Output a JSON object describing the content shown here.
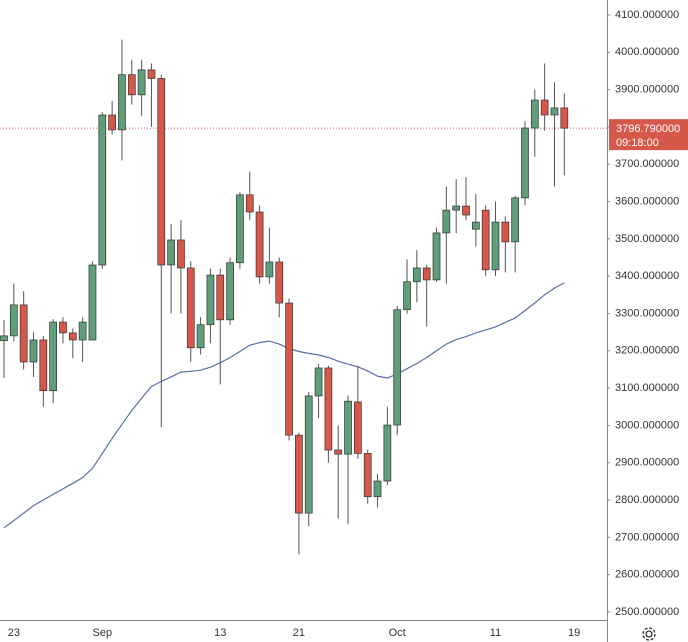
{
  "chart_data": {
    "type": "candlestick",
    "categories": [
      null,
      "23",
      null,
      null,
      null,
      null,
      null,
      null,
      null,
      null,
      "Sep",
      null,
      null,
      null,
      null,
      null,
      null,
      null,
      null,
      null,
      null,
      null,
      "13",
      null,
      null,
      null,
      null,
      null,
      null,
      null,
      "21",
      null,
      null,
      null,
      null,
      null,
      null,
      null,
      null,
      null,
      "Oct",
      null,
      null,
      null,
      null,
      null,
      null,
      null,
      null,
      null,
      "11",
      null,
      null,
      null,
      null,
      null,
      null,
      null,
      "19"
    ],
    "open": [
      3227,
      3240,
      3323,
      3170,
      3229,
      3093,
      3277,
      3248,
      3229,
      3229,
      3430,
      3832,
      3792,
      3940,
      3886,
      3953,
      3930,
      3430,
      3497,
      3422,
      3208,
      3270,
      3403,
      3283,
      3436,
      3618,
      3572,
      3398,
      3438,
      3328,
      2974,
      2765,
      3079,
      3154,
      2934,
      2923,
      3063,
      2925,
      2809,
      2851,
      3001,
      3310,
      3385,
      3422,
      3390,
      3516,
      3577,
      3588,
      3526,
      3577,
      3417,
      3545,
      3492,
      3610,
      3797,
      3872,
      3832,
      3851,
      null
    ],
    "high": [
      3283,
      3380,
      3360,
      3250,
      3240,
      3285,
      3290,
      3260,
      3290,
      3440,
      3840,
      3870,
      4034,
      3980,
      3980,
      3970,
      3940,
      3540,
      3550,
      3440,
      3290,
      3420,
      3420,
      3450,
      3625,
      3680,
      3590,
      3530,
      3450,
      3340,
      2980,
      3090,
      3165,
      3160,
      3000,
      3080,
      3160,
      2935,
      2870,
      3050,
      3320,
      3445,
      3470,
      3430,
      3530,
      3640,
      3660,
      3665,
      3620,
      3590,
      3600,
      3560,
      3615,
      3815,
      3900,
      3970,
      3920,
      3890,
      null
    ],
    "low": [
      3127,
      3225,
      3150,
      3130,
      3050,
      3060,
      3220,
      3180,
      3170,
      3229,
      3420,
      3780,
      3710,
      3860,
      3830,
      3800,
      2995,
      3300,
      3300,
      3170,
      3190,
      3220,
      3110,
      3270,
      3420,
      3550,
      3380,
      3380,
      3290,
      2960,
      2655,
      2730,
      3020,
      2900,
      2750,
      2735,
      2910,
      2790,
      2780,
      2840,
      2975,
      3300,
      3330,
      3265,
      3385,
      3380,
      3515,
      3550,
      3480,
      3400,
      3400,
      3410,
      3410,
      3590,
      3720,
      3790,
      3640,
      3670,
      null
    ],
    "close": [
      3240,
      3323,
      3170,
      3229,
      3093,
      3277,
      3248,
      3229,
      3277,
      3430,
      3832,
      3792,
      3940,
      3886,
      3953,
      3930,
      3430,
      3497,
      3422,
      3208,
      3270,
      3403,
      3283,
      3436,
      3618,
      3572,
      3398,
      3438,
      3328,
      2974,
      2765,
      3079,
      3154,
      2934,
      2923,
      3065,
      2925,
      2809,
      2851,
      3001,
      3310,
      3385,
      3422,
      3390,
      3516,
      3577,
      3588,
      3564,
      3545,
      3417,
      3545,
      3492,
      3610,
      3797,
      3872,
      3832,
      3851,
      3796.79,
      null
    ],
    "up_color": "#5f9e78",
    "down_color": "#d6584a",
    "ma": {
      "color": "#5a6fa8",
      "values": [
        2726,
        2745,
        2765,
        2785,
        2800,
        2815,
        2830,
        2845,
        2860,
        2885,
        2925,
        2965,
        3003,
        3040,
        3073,
        3104,
        3118,
        3130,
        3143,
        3145,
        3148,
        3156,
        3168,
        3182,
        3198,
        3215,
        3222,
        3226,
        3218,
        3206,
        3198,
        3193,
        3189,
        3182,
        3172,
        3164,
        3157,
        3146,
        3132,
        3127,
        3138,
        3152,
        3166,
        3182,
        3200,
        3218,
        3230,
        3238,
        3248,
        3256,
        3264,
        3276,
        3288,
        3308,
        3328,
        3350,
        3368,
        3382,
        null
      ]
    },
    "price_line": {
      "value": 3796.79,
      "label": "3796.790000",
      "countdown": "09:18:00",
      "color": "#d6584a"
    },
    "ylim": [
      2478.5,
      4140.2
    ],
    "yticks": [
      {
        "value": 2500,
        "label": "2500.000000"
      },
      {
        "value": 2600,
        "label": "2600.000000"
      },
      {
        "value": 2700,
        "label": "2700.000000"
      },
      {
        "value": 2800,
        "label": "2800.000000"
      },
      {
        "value": 2900,
        "label": "2900.000000"
      },
      {
        "value": 3000,
        "label": "3000.000000"
      },
      {
        "value": 3100,
        "label": "3100.000000"
      },
      {
        "value": 3200,
        "label": "3200.000000"
      },
      {
        "value": 3300,
        "label": "3300.000000"
      },
      {
        "value": 3400,
        "label": "3400.000000"
      },
      {
        "value": 3500,
        "label": "3500.000000"
      },
      {
        "value": 3600,
        "label": "3600.000000"
      },
      {
        "value": 3700,
        "label": "3700.000000"
      },
      {
        "value": 3800,
        "label": "3800.000000"
      },
      {
        "value": 3900,
        "label": "3900.000000"
      },
      {
        "value": 4000,
        "label": "4000.000000"
      },
      {
        "value": 4100,
        "label": "4100.000000"
      }
    ],
    "grid": false
  }
}
